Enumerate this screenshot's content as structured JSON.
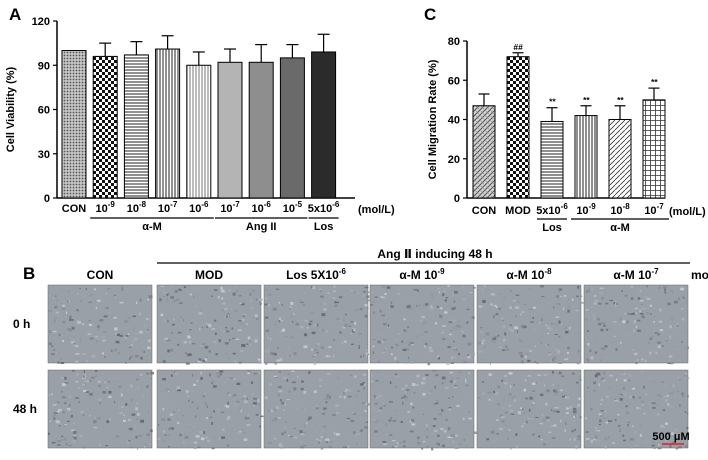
{
  "panels": {
    "a": {
      "letter": "A"
    },
    "b": {
      "letter": "B"
    },
    "c": {
      "letter": "C"
    }
  },
  "chart_data": [
    {
      "panel": "A",
      "type": "bar",
      "ylabel": "Cell Viability (%)",
      "ylim": [
        0,
        120
      ],
      "yticks": [
        "0",
        "30",
        "60",
        "90",
        "120"
      ],
      "unit_label": "(mol/L)",
      "bars": [
        {
          "label": "CON",
          "value": 100,
          "err": 0,
          "fill": "dots"
        },
        {
          "label": "10",
          "exp": "-9",
          "value": 96,
          "err": 9,
          "fill": "check"
        },
        {
          "label": "10",
          "exp": "-8",
          "value": 97,
          "err": 9,
          "fill": "hlines"
        },
        {
          "label": "10",
          "exp": "-7",
          "value": 101,
          "err": 9,
          "fill": "vlines"
        },
        {
          "label": "10",
          "exp": "-6",
          "value": 90,
          "err": 9,
          "fill": "vlight"
        },
        {
          "label": "10",
          "exp": "-7",
          "value": 92,
          "err": 9,
          "fill": "#b4b4b4"
        },
        {
          "label": "10",
          "exp": "-6",
          "value": 92,
          "err": 12,
          "fill": "#8e8e8e"
        },
        {
          "label": "10",
          "exp": "-5",
          "value": 95,
          "err": 9,
          "fill": "#6a6a6a"
        },
        {
          "label": "5x10",
          "exp": "-6",
          "value": 99,
          "err": 12,
          "fill": "#2b2b2b"
        }
      ],
      "groups": [
        {
          "label": "α-M"
        },
        {
          "label": "Ang II"
        },
        {
          "label": "Los"
        }
      ]
    },
    {
      "panel": "C",
      "type": "bar",
      "ylabel": "Cell Migration Rate (%)",
      "ylim": [
        0,
        80
      ],
      "yticks": [
        "0",
        "20",
        "40",
        "60",
        "80"
      ],
      "unit_label": "(mol/L)",
      "bars": [
        {
          "label": "CON",
          "value": 47,
          "err": 6,
          "fill": "hatch",
          "sig": ""
        },
        {
          "label": "MOD",
          "value": 72,
          "err": 2,
          "fill": "check",
          "sig": "##"
        },
        {
          "label": "5x10",
          "exp": "-6",
          "value": 39,
          "err": 7,
          "fill": "hlines",
          "sig": "**"
        },
        {
          "label": "10",
          "exp": "-9",
          "value": 42,
          "err": 5,
          "fill": "vlines",
          "sig": "**"
        },
        {
          "label": "10",
          "exp": "-8",
          "value": 40,
          "err": 7,
          "fill": "hatch2",
          "sig": "**"
        },
        {
          "label": "10",
          "exp": "-7",
          "value": 50,
          "err": 6,
          "fill": "grid",
          "sig": "**"
        }
      ],
      "groups": [
        {
          "label": "Los"
        },
        {
          "label": "α-M"
        }
      ]
    }
  ],
  "scratch_panel": {
    "header": "Ang Ⅱ inducing 48 h",
    "columns": [
      {
        "label": "CON"
      },
      {
        "label": "MOD"
      },
      {
        "label": "Los 5X10",
        "exp": "-6"
      },
      {
        "label": "α-M 10",
        "exp": "-9"
      },
      {
        "label": "α-M 10",
        "exp": "-8"
      },
      {
        "label": "α-M 10",
        "exp": "-7"
      }
    ],
    "unit": "mol/L",
    "rows": [
      "0 h",
      "48 h"
    ],
    "scale_bar": "500 μM"
  }
}
